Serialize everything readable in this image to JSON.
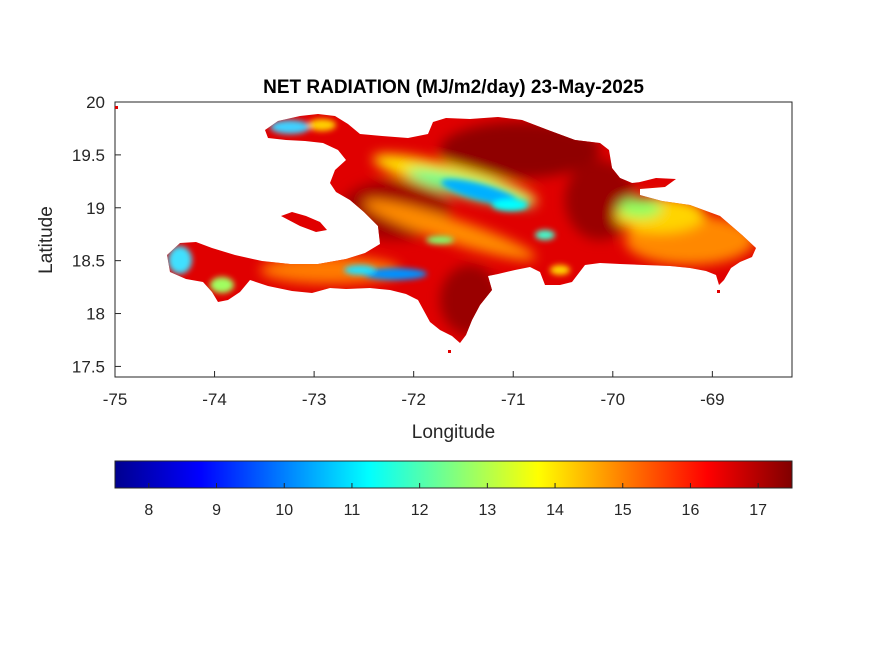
{
  "chart_data": {
    "type": "heatmap",
    "title": "NET RADIATION (MJ/m2/day) 23-May-2025",
    "xlabel": "Longitude",
    "ylabel": "Latitude",
    "xlim": [
      -75,
      -68.2
    ],
    "ylim": [
      17.4,
      20
    ],
    "x_ticks": [
      -75,
      -74,
      -73,
      -72,
      -71,
      -70,
      -69
    ],
    "y_ticks": [
      17.5,
      18,
      18.5,
      19,
      19.5,
      20
    ],
    "grid": false,
    "colormap": "jet",
    "colorbar": {
      "orientation": "horizontal",
      "placement": "bottom",
      "range": [
        7.5,
        17.5
      ],
      "ticks": [
        8,
        9,
        10,
        11,
        12,
        13,
        14,
        15,
        16,
        17
      ]
    },
    "region": "Hispaniola",
    "dominant_range": [
      15,
      17.5
    ],
    "low_value_areas": [
      {
        "name": "northern interior band",
        "lon": -71.6,
        "lat": 19.1,
        "value": 11
      },
      {
        "name": "southwest coast",
        "lon": -72.3,
        "lat": 18.35,
        "value": 10.5
      },
      {
        "name": "western tip",
        "lon": -74.4,
        "lat": 18.45,
        "value": 11
      },
      {
        "name": "northwest peninsula",
        "lon": -73.2,
        "lat": 19.8,
        "value": 11.5
      },
      {
        "name": "eastern interior",
        "lon": -69.9,
        "lat": 18.9,
        "value": 13
      }
    ]
  },
  "colors": {
    "jet": [
      "#00008f",
      "#0000ff",
      "#0080ff",
      "#00ffff",
      "#80ff80",
      "#ffff00",
      "#ff8000",
      "#ff0000",
      "#800000"
    ],
    "land_base": "#e00000",
    "axis": "#262626"
  }
}
